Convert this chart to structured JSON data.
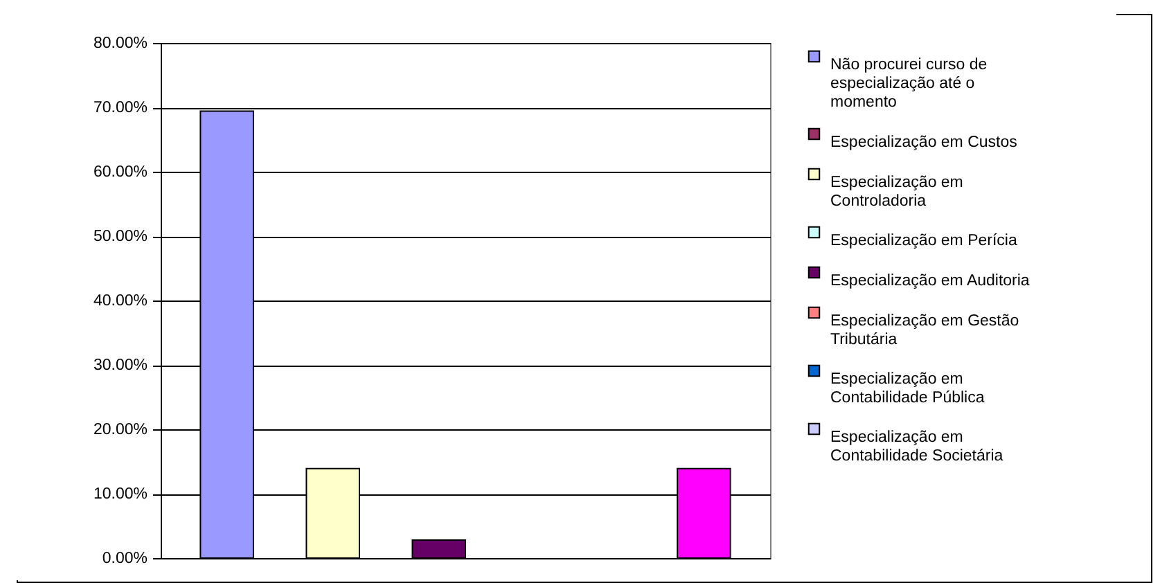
{
  "chart_data": {
    "type": "bar",
    "categories": [
      null
    ],
    "series": [
      {
        "name": "Não procurei curso de especialização até o momento",
        "color": "#9999ff",
        "values": [
          69.4
        ]
      },
      {
        "name": "Especialização em Custos",
        "color": "#993366",
        "values": [
          0
        ]
      },
      {
        "name": "Especialização em Controladoria",
        "color": "#ffffcc",
        "values": [
          13.9
        ]
      },
      {
        "name": "Especialização em Perícia",
        "color": "#ccffff",
        "values": [
          0
        ]
      },
      {
        "name": "Especialização em Auditoria",
        "color": "#660066",
        "values": [
          2.8
        ]
      },
      {
        "name": "Especialização em Gestão Tributária",
        "color": "#ff8080",
        "values": [
          0
        ]
      },
      {
        "name": "Especialização em Contabilidade Pública",
        "color": "#0066cc",
        "values": [
          0
        ]
      },
      {
        "name": "Especialização em Contabilidade Societária",
        "color": "#ccccff",
        "values": [
          0
        ]
      },
      {
        "color": "#000080",
        "values": [
          0
        ]
      },
      {
        "color": "#ff00ff",
        "values": [
          13.9
        ]
      }
    ],
    "ylim": [
      0,
      80
    ],
    "yticks": [
      {
        "value": 0,
        "label": "0.00%"
      },
      {
        "value": 10,
        "label": "10.00%"
      },
      {
        "value": 20,
        "label": "20.00%"
      },
      {
        "value": 30,
        "label": "30.00%"
      },
      {
        "value": 40,
        "label": "40.00%"
      },
      {
        "value": 50,
        "label": "50.00%"
      },
      {
        "value": 60,
        "label": "60.00%"
      },
      {
        "value": 70,
        "label": "70.00%"
      },
      {
        "value": 80,
        "label": "80.00%"
      }
    ],
    "grid": "y",
    "legend": "right"
  }
}
